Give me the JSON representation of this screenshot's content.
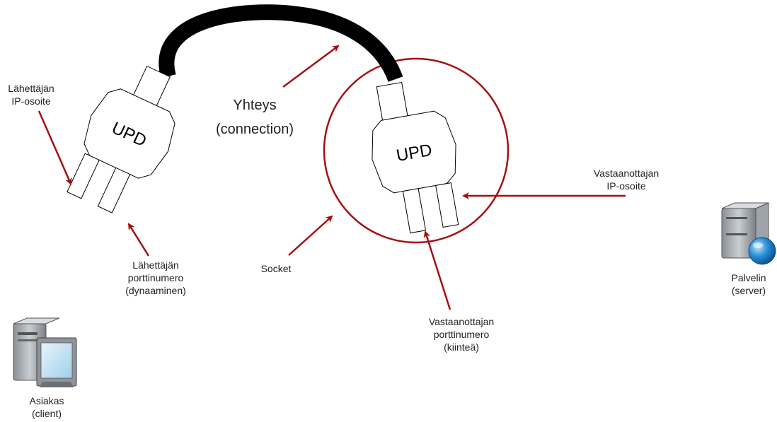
{
  "colors": {
    "arrow": "#a50f12",
    "socket_circle": "#a50f12",
    "cable": "#000000",
    "outline": "#000000"
  },
  "plugs": {
    "left": {
      "text": "UPD"
    },
    "right": {
      "text": "UPD"
    }
  },
  "labels": {
    "sender_ip": {
      "line1": "Lähettäjän",
      "line2": "IP-osoite"
    },
    "sender_port": {
      "line1": "Lähettäjän",
      "line2": "porttinumero",
      "line3": "(dynaaminen)"
    },
    "connection": {
      "line1": "Yhteys",
      "line2": "(connection)"
    },
    "socket": {
      "line1": "Socket"
    },
    "receiver_ip": {
      "line1": "Vastaanottajan",
      "line2": "IP-osoite"
    },
    "receiver_port": {
      "line1": "Vastaanottajan",
      "line2": "porttinumero",
      "line3": "(kiinteä)"
    },
    "client": {
      "line1": "Asiakas",
      "line2": "(client)"
    },
    "server": {
      "line1": "Palvelin",
      "line2": "(server)"
    }
  },
  "icons": {
    "client": "desktop-computer-icon",
    "server": "server-globe-icon"
  }
}
